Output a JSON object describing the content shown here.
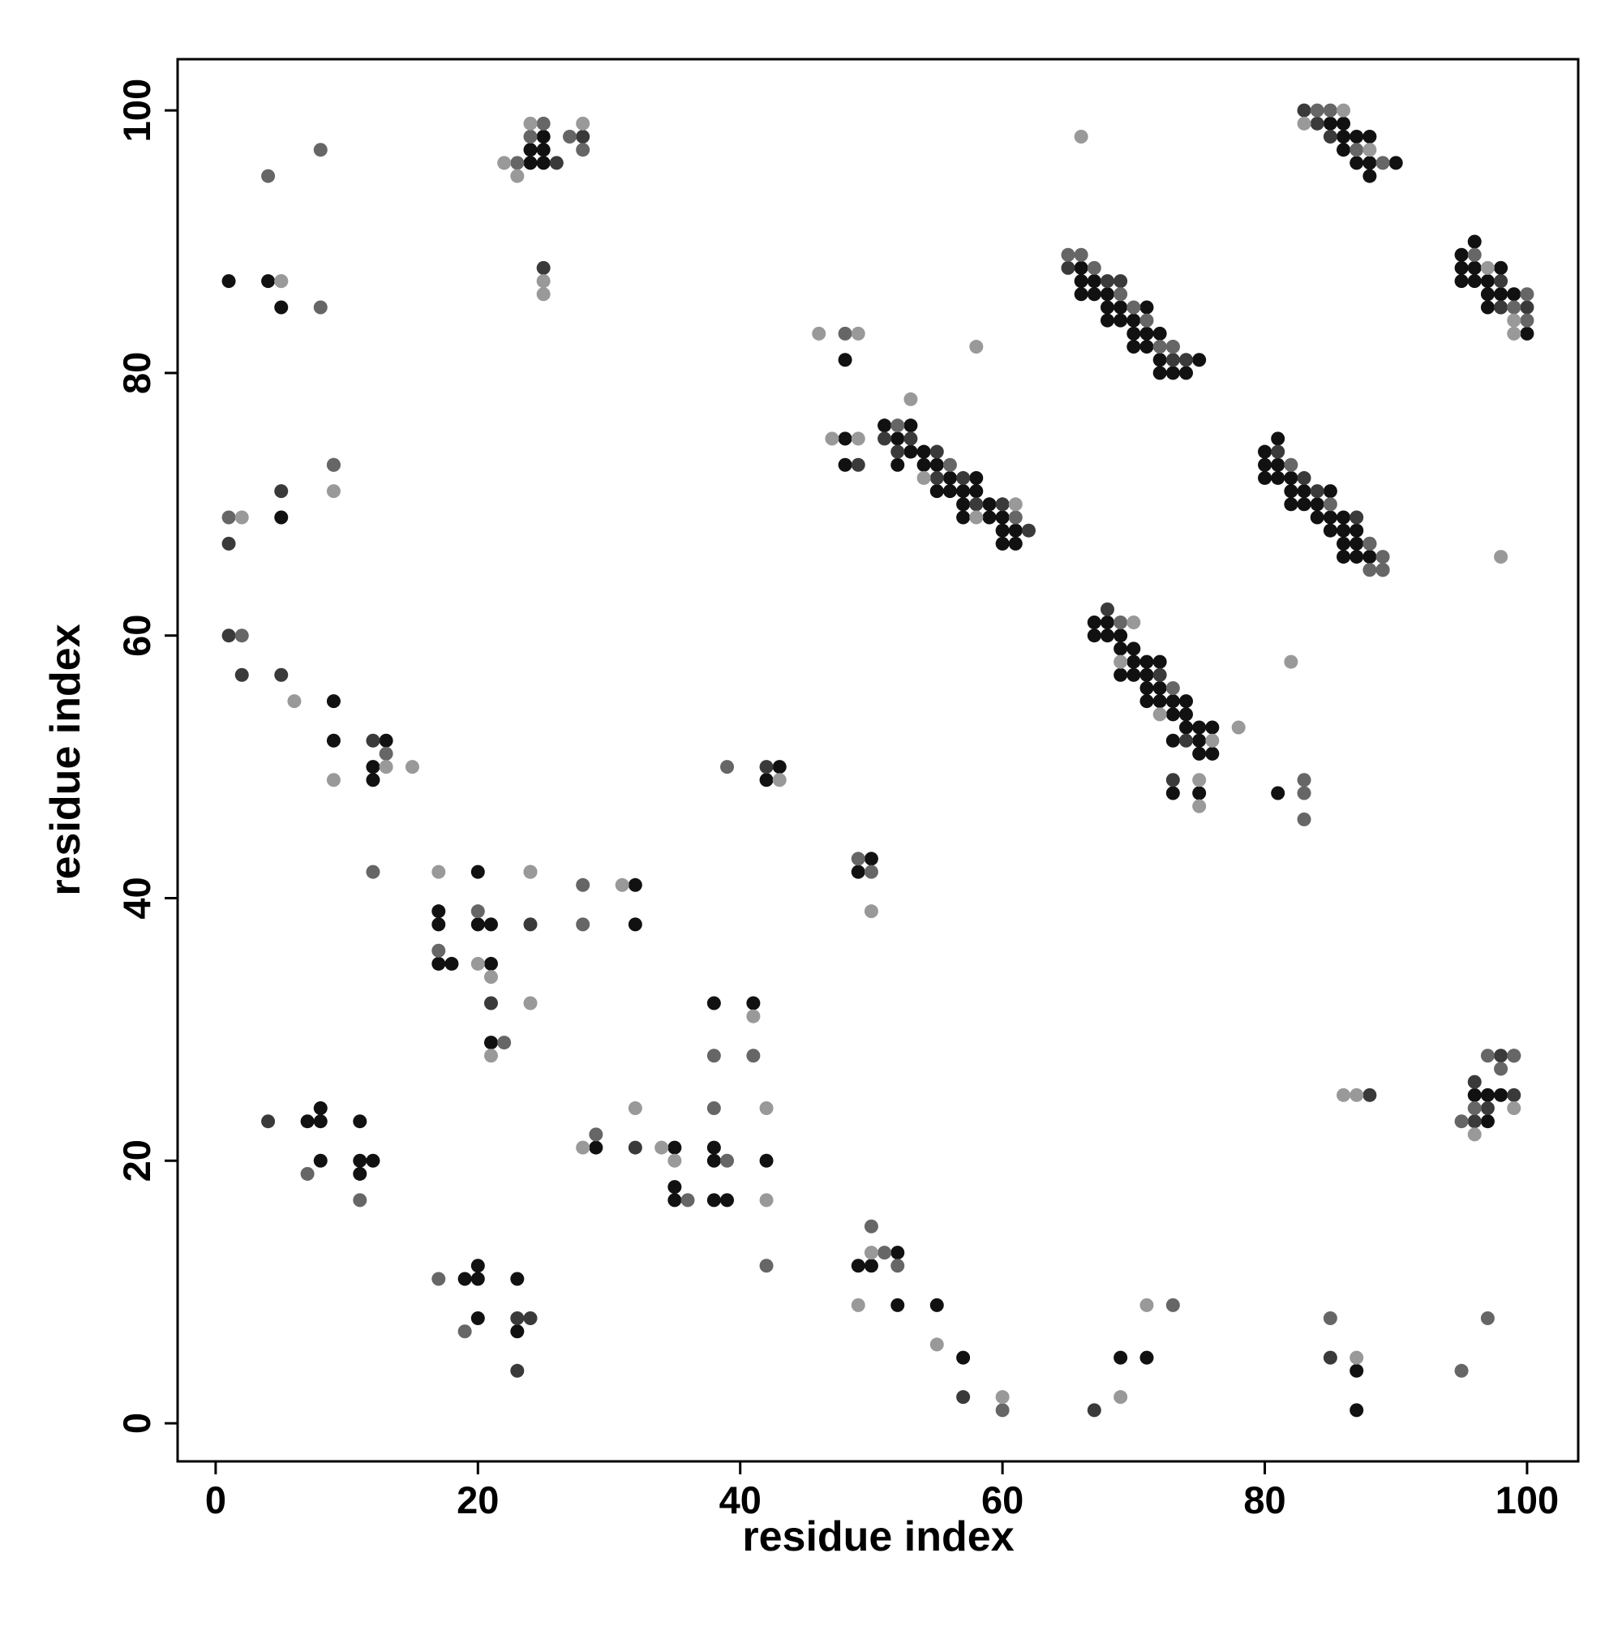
{
  "chart_data": {
    "type": "scatter",
    "xlabel": "residue index",
    "ylabel": "residue index",
    "xlim": [
      -2.9,
      103.9
    ],
    "ylim": [
      -2.9,
      103.9
    ],
    "xticks": [
      0,
      20,
      40,
      60,
      80,
      100
    ],
    "yticks": [
      0,
      20,
      40,
      60,
      80,
      100
    ],
    "series": [
      {
        "color": "#111111",
        "x": [
          87,
          57,
          69,
          71,
          87,
          20,
          23,
          52,
          55,
          19,
          20,
          20,
          23,
          49,
          50,
          52,
          35,
          38,
          39,
          35,
          11,
          8,
          11,
          12,
          38,
          42,
          29,
          35,
          38,
          7,
          8,
          8,
          11,
          38,
          41,
          21,
          21,
          17,
          18,
          17,
          17,
          20,
          21,
          32,
          20,
          32,
          49,
          50,
          12,
          12,
          13,
          9,
          9,
          42,
          43,
          5,
          1,
          4,
          5,
          24,
          24,
          25,
          25,
          25,
          48,
          48,
          48,
          51,
          52,
          52,
          53,
          53,
          54,
          54,
          55,
          55,
          56,
          56,
          57,
          57,
          57,
          58,
          58,
          59,
          59,
          60,
          60,
          60,
          61,
          61,
          66,
          66,
          66,
          67,
          67,
          68,
          68,
          68,
          69,
          69,
          70,
          70,
          70,
          71,
          71,
          71,
          72,
          72,
          72,
          73,
          73,
          74,
          75,
          67,
          67,
          68,
          68,
          69,
          69,
          69,
          70,
          70,
          70,
          71,
          71,
          71,
          71,
          72,
          72,
          72,
          73,
          73,
          73,
          74,
          74,
          74,
          75,
          75,
          75,
          76,
          76,
          73,
          75,
          81,
          80,
          80,
          80,
          81,
          81,
          81,
          82,
          82,
          82,
          83,
          83,
          84,
          84,
          85,
          85,
          85,
          86,
          86,
          86,
          86,
          87,
          87,
          87,
          88,
          88,
          89,
          90,
          85,
          86,
          86,
          86,
          87,
          87,
          88,
          88,
          88,
          95,
          95,
          95,
          96,
          96,
          96,
          97,
          97,
          97,
          98,
          98,
          98,
          99,
          100,
          96,
          97,
          97,
          98
        ],
        "y": [
          1,
          5,
          5,
          5,
          4,
          8,
          7,
          9,
          9,
          11,
          11,
          12,
          11,
          12,
          12,
          13,
          17,
          17,
          17,
          18,
          19,
          20,
          20,
          20,
          20,
          20,
          21,
          21,
          21,
          23,
          23,
          24,
          23,
          32,
          32,
          29,
          35,
          35,
          35,
          38,
          39,
          38,
          38,
          38,
          42,
          41,
          42,
          43,
          49,
          50,
          52,
          52,
          55,
          49,
          50,
          69,
          87,
          87,
          85,
          96,
          97,
          96,
          97,
          98,
          81,
          75,
          73,
          76,
          75,
          73,
          76,
          74,
          74,
          73,
          73,
          71,
          72,
          71,
          71,
          70,
          69,
          72,
          71,
          70,
          69,
          69,
          68,
          67,
          68,
          67,
          88,
          87,
          86,
          87,
          86,
          86,
          85,
          84,
          85,
          84,
          84,
          83,
          82,
          85,
          83,
          82,
          81,
          80,
          83,
          80,
          82,
          80,
          81,
          61,
          60,
          61,
          60,
          60,
          59,
          57,
          59,
          58,
          57,
          58,
          57,
          56,
          55,
          58,
          56,
          55,
          55,
          54,
          52,
          55,
          54,
          53,
          53,
          52,
          51,
          53,
          51,
          48,
          48,
          48,
          74,
          73,
          72,
          75,
          73,
          72,
          72,
          71,
          70,
          71,
          70,
          70,
          69,
          71,
          69,
          68,
          69,
          68,
          67,
          66,
          68,
          67,
          66,
          67,
          66,
          65,
          96,
          99,
          99,
          98,
          97,
          98,
          96,
          98,
          96,
          95,
          89,
          88,
          87,
          90,
          88,
          87,
          87,
          86,
          85,
          88,
          86,
          85,
          86,
          83,
          25,
          25,
          23,
          25
        ]
      },
      {
        "color": "#3a3a3a",
        "x": [
          67,
          57,
          85,
          23,
          23,
          24,
          32,
          4,
          21,
          24,
          12,
          42,
          5,
          2,
          1,
          1,
          5,
          26,
          28,
          25,
          49,
          51,
          52,
          53,
          55,
          55,
          57,
          58,
          60,
          62,
          65,
          68,
          69,
          73,
          74,
          68,
          72,
          74,
          73,
          81,
          83,
          84,
          87,
          83,
          84,
          85,
          98,
          98,
          100,
          88,
          96,
          96,
          97,
          98,
          99,
          99
        ],
        "y": [
          1,
          2,
          5,
          4,
          8,
          8,
          21,
          23,
          32,
          38,
          52,
          50,
          57,
          57,
          60,
          67,
          71,
          96,
          98,
          88,
          73,
          75,
          74,
          75,
          74,
          72,
          72,
          70,
          70,
          68,
          88,
          87,
          87,
          81,
          81,
          62,
          57,
          52,
          49,
          74,
          72,
          71,
          69,
          100,
          99,
          98,
          87,
          85,
          85,
          25,
          26,
          23,
          24,
          28,
          25,
          28
        ]
      },
      {
        "color": "#666666",
        "x": [
          60,
          95,
          19,
          73,
          85,
          97,
          17,
          42,
          52,
          51,
          50,
          36,
          11,
          7,
          39,
          29,
          38,
          38,
          41,
          22,
          20,
          17,
          28,
          12,
          28,
          9,
          13,
          39,
          49,
          50,
          2,
          1,
          9,
          8,
          4,
          8,
          23,
          24,
          25,
          27,
          28,
          48,
          52,
          56,
          61,
          65,
          66,
          67,
          69,
          70,
          71,
          72,
          73,
          69,
          73,
          83,
          83,
          83,
          82,
          85,
          88,
          88,
          89,
          89,
          84,
          85,
          87,
          89,
          96,
          99,
          100,
          100,
          95,
          96,
          97,
          98,
          99
        ],
        "y": [
          1,
          4,
          7,
          9,
          8,
          8,
          11,
          12,
          12,
          13,
          15,
          17,
          17,
          19,
          20,
          22,
          24,
          28,
          28,
          29,
          39,
          36,
          41,
          42,
          38,
          73,
          51,
          50,
          43,
          42,
          60,
          69,
          73,
          85,
          95,
          97,
          96,
          98,
          99,
          98,
          97,
          83,
          76,
          73,
          69,
          89,
          89,
          88,
          86,
          85,
          84,
          82,
          82,
          61,
          56,
          49,
          48,
          46,
          73,
          70,
          67,
          65,
          66,
          65,
          100,
          100,
          97,
          96,
          89,
          85,
          86,
          84,
          23,
          24,
          28,
          27,
          28
        ]
      },
      {
        "color": "#999999",
        "x": [
          60,
          69,
          87,
          55,
          49,
          71,
          50,
          42,
          35,
          28,
          34,
          32,
          42,
          24,
          41,
          21,
          21,
          20,
          24,
          17,
          24,
          31,
          50,
          43,
          9,
          13,
          15,
          6,
          2,
          5,
          9,
          5,
          22,
          23,
          24,
          28,
          25,
          25,
          46,
          49,
          47,
          49,
          53,
          54,
          58,
          58,
          61,
          66,
          69,
          70,
          72,
          78,
          75,
          75,
          76,
          82,
          83,
          86,
          88,
          98,
          97,
          99,
          99,
          86,
          87,
          96,
          99
        ],
        "y": [
          2,
          2,
          5,
          6,
          9,
          9,
          13,
          17,
          20,
          21,
          21,
          24,
          24,
          32,
          31,
          28,
          34,
          35,
          42,
          42,
          42,
          41,
          39,
          49,
          49,
          50,
          50,
          55,
          69,
          87,
          71,
          87,
          96,
          95,
          99,
          99,
          87,
          86,
          83,
          83,
          75,
          75,
          78,
          72,
          82,
          69,
          70,
          98,
          58,
          61,
          54,
          53,
          49,
          47,
          52,
          58,
          99,
          100,
          97,
          66,
          88,
          84,
          83,
          25,
          25,
          22,
          24
        ]
      }
    ]
  }
}
